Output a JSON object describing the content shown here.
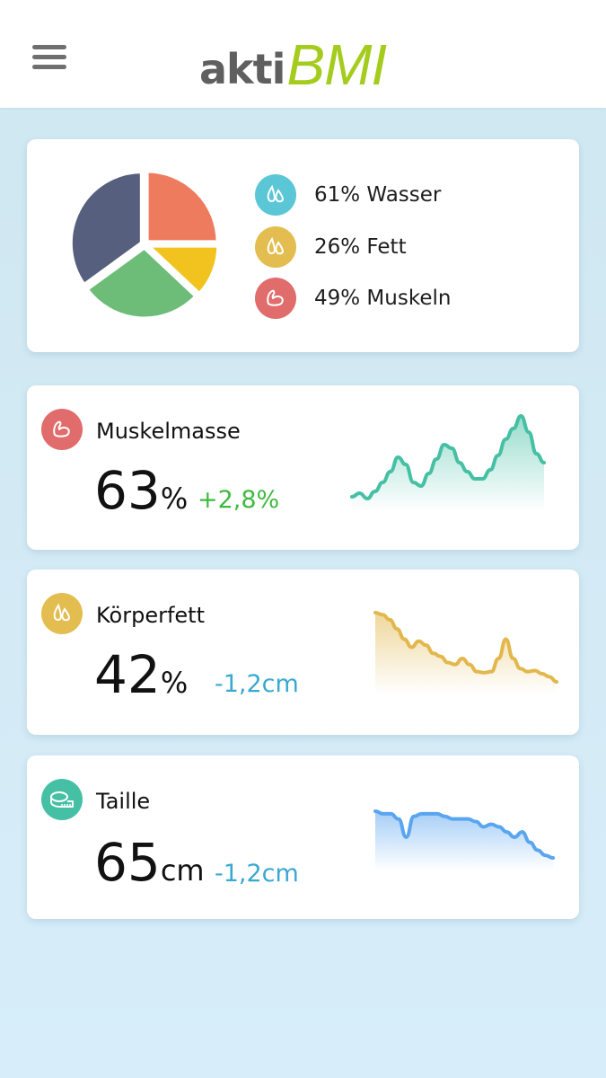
{
  "header": {
    "menu_icon": "hamburger-menu-icon",
    "logo_part1": "akti",
    "logo_part2": "BMI",
    "logo_color": "#a4cc1d"
  },
  "summary": {
    "chart_data": {
      "type": "pie",
      "slices": [
        {
          "label": "slice-1",
          "value": 25,
          "color": "#ef7b5e"
        },
        {
          "label": "slice-2",
          "value": 12,
          "color": "#f2c31f"
        },
        {
          "label": "slice-3",
          "value": 28,
          "color": "#6dbd78"
        },
        {
          "label": "slice-4",
          "value": 35,
          "color": "#565f7d"
        }
      ]
    },
    "legend": [
      {
        "text": "61% Wasser",
        "icon": "water-drops-icon",
        "color": "#5bc6d5"
      },
      {
        "text": "26% Fett",
        "icon": "fat-drops-icon",
        "color": "#e3bd4f"
      },
      {
        "text": "49% Muskeln",
        "icon": "muscle-arm-icon",
        "color": "#e06c6c"
      }
    ]
  },
  "metrics": [
    {
      "title": "Muskelmasse",
      "value": "63",
      "unit": "%",
      "delta": "+2,8%",
      "delta_color": "#3fb93f",
      "icon": "muscle-arm-icon",
      "icon_color": "#e06c6c",
      "trend": [
        44,
        46,
        43,
        47,
        52,
        58,
        66,
        62,
        52,
        50,
        57,
        65,
        73,
        71,
        63,
        58,
        54,
        54,
        59,
        67,
        76,
        82,
        89,
        80,
        68,
        63
      ],
      "trend_color": "#45c0a4"
    },
    {
      "title": "Körperfett",
      "value": "42",
      "unit": "%",
      "delta": "-1,2cm",
      "delta_color": "#3aa8cf",
      "icon": "fat-drops-icon",
      "icon_color": "#e3bd4f",
      "trend": [
        98,
        96,
        91,
        82,
        72,
        64,
        70,
        66,
        58,
        55,
        49,
        47,
        53,
        47,
        40,
        39,
        40,
        53,
        72,
        53,
        43,
        40,
        41,
        38,
        35,
        30
      ],
      "trend_color": "#e2b74c"
    },
    {
      "title": "Taille",
      "value": "65",
      "unit": "cm",
      "delta": "-1,2cm",
      "delta_color": "#3aa8cf",
      "icon": "tape-measure-icon",
      "icon_color": "#45c0a4",
      "trend": [
        70,
        69,
        69,
        67,
        60,
        68,
        69,
        69,
        69,
        68,
        67,
        67,
        67,
        66,
        64,
        65,
        64,
        62,
        60,
        62,
        58,
        55,
        53,
        52
      ],
      "trend_color": "#5aa5ef"
    }
  ]
}
